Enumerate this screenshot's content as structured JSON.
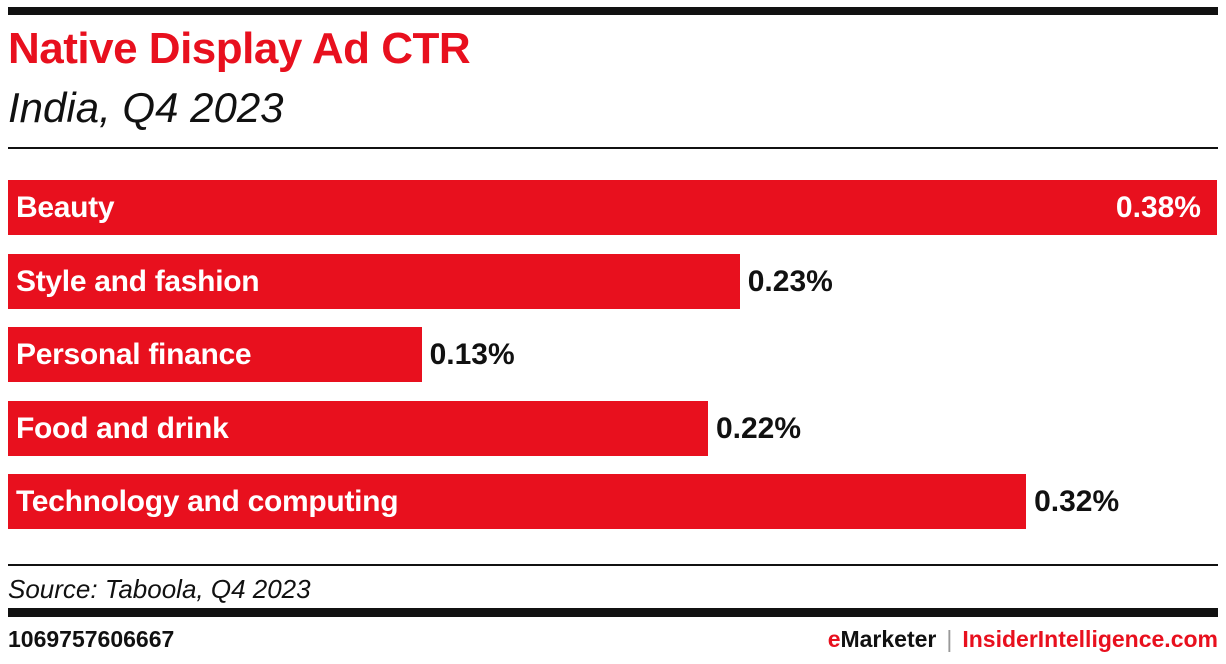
{
  "chart_data": {
    "type": "bar",
    "orientation": "horizontal",
    "title": "Native Display Ad CTR",
    "subtitle": "India, Q4 2023",
    "categories": [
      "Beauty",
      "Style and fashion",
      "Personal finance",
      "Food and drink",
      "Technology and computing"
    ],
    "values": [
      0.38,
      0.23,
      0.13,
      0.22,
      0.32
    ],
    "value_labels": [
      "0.38%",
      "0.23%",
      "0.13%",
      "0.22%",
      "0.32%"
    ],
    "unit": "%",
    "xlim": [
      0,
      0.38
    ],
    "grid": false,
    "bar_color": "#e8101e"
  },
  "footer": {
    "source": "Source: Taboola, Q4 2023",
    "chart_id": "1069757606667",
    "brand_e": "e",
    "brand_marketer": "Marketer",
    "separator": "|",
    "brand_ii": "InsiderIntelligence.com"
  }
}
